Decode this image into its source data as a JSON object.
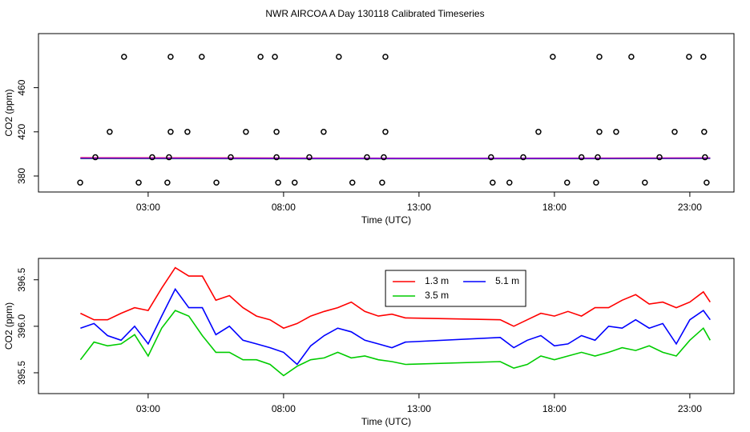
{
  "title": "NWR AIRCOA A  Day 130118  Calibrated Timeseries",
  "chart_data": [
    {
      "type": "scatter",
      "xlabel": "Time (UTC)",
      "ylabel": "CO2 (ppm)",
      "xlim": [
        -1.05,
        24.63
      ],
      "xticks": [
        {
          "value": 3,
          "label": "03:00"
        },
        {
          "value": 8,
          "label": "08:00"
        },
        {
          "value": 13,
          "label": "13:00"
        },
        {
          "value": 18,
          "label": "18:00"
        },
        {
          "value": 23,
          "label": "23:00"
        }
      ],
      "ylim": [
        365.5,
        509
      ],
      "yticks": [
        380,
        420,
        460
      ],
      "points": {
        "color": "#000000",
        "x": [
          2.11,
          3.83,
          4.98,
          7.15,
          7.68,
          10.04,
          11.76,
          17.94,
          19.66,
          20.84,
          22.97,
          23.5,
          1.58,
          3.83,
          4.45,
          6.61,
          7.74,
          9.48,
          11.76,
          17.41,
          19.66,
          20.28,
          22.44,
          23.53,
          1.05,
          3.15,
          3.77,
          6.05,
          7.74,
          8.95,
          11.08,
          11.7,
          15.66,
          16.85,
          19.0,
          19.6,
          21.88,
          23.56,
          0.49,
          2.65,
          3.71,
          5.52,
          7.8,
          8.41,
          10.54,
          11.64,
          15.72,
          16.34,
          18.47,
          19.54,
          21.34,
          23.62
        ],
        "values": [
          488,
          488,
          488,
          488,
          488,
          488,
          488,
          488,
          488,
          488,
          488,
          488,
          420,
          420,
          420,
          420,
          420,
          420,
          420,
          420,
          420,
          420,
          420,
          420,
          397,
          397,
          397,
          397,
          397,
          397,
          397,
          397,
          397,
          397,
          397,
          397,
          397,
          397,
          374,
          374,
          374,
          374,
          374,
          374,
          374,
          374,
          374,
          374,
          374,
          374,
          374,
          374
        ]
      },
      "series": [
        {
          "color": "#ff0000",
          "x": [
            0.5,
            12.5,
            16.0,
            23.75
          ],
          "values": [
            396.5,
            396.1,
            396.1,
            396.3
          ]
        },
        {
          "color": "#00cc00",
          "x": [
            0.5,
            12.5,
            16.0,
            23.75
          ],
          "values": [
            395.8,
            395.6,
            395.6,
            395.9
          ]
        },
        {
          "color": "#0000ff",
          "x": [
            0.5,
            12.5,
            16.0,
            23.75
          ],
          "values": [
            396.1,
            395.8,
            395.9,
            396.1
          ]
        },
        {
          "color": "#9900cc",
          "x": [
            0.5,
            12.5,
            16.0,
            23.75
          ],
          "values": [
            396.3,
            396.0,
            396.0,
            396.2
          ]
        }
      ]
    },
    {
      "type": "line",
      "xlabel": "Time (UTC)",
      "ylabel": "CO2 (ppm)",
      "xlim": [
        -1.05,
        24.63
      ],
      "xticks": [
        {
          "value": 3,
          "label": "03:00"
        },
        {
          "value": 8,
          "label": "08:00"
        },
        {
          "value": 13,
          "label": "13:00"
        },
        {
          "value": 18,
          "label": "18:00"
        },
        {
          "value": 23,
          "label": "23:00"
        }
      ],
      "ylim": [
        395.276,
        396.73
      ],
      "yticks": [
        {
          "value": 395.5,
          "label": "395.5"
        },
        {
          "value": 396,
          "label": "396.0"
        },
        {
          "value": 396.5,
          "label": "396.5"
        }
      ],
      "legend_position": "top-center",
      "x": [
        0.5,
        1.0,
        1.5,
        2.0,
        2.5,
        3.0,
        3.5,
        4.0,
        4.5,
        5.0,
        5.5,
        6.0,
        6.5,
        7.0,
        7.5,
        8.0,
        8.5,
        9.0,
        9.5,
        10.0,
        10.5,
        11.0,
        11.5,
        12.0,
        12.5,
        16.0,
        16.5,
        17.0,
        17.5,
        18.0,
        18.5,
        19.0,
        19.5,
        20.0,
        20.5,
        21.0,
        21.5,
        22.0,
        22.5,
        23.0,
        23.5,
        23.75
      ],
      "series": [
        {
          "name": "1.3 m",
          "color": "#ff0000",
          "values": [
            396.14,
            396.07,
            396.07,
            396.14,
            396.2,
            396.17,
            396.41,
            396.63,
            396.54,
            396.54,
            396.28,
            396.33,
            396.2,
            396.11,
            396.07,
            395.98,
            396.03,
            396.11,
            396.16,
            396.2,
            396.26,
            396.16,
            396.11,
            396.13,
            396.09,
            396.07,
            396.0,
            396.07,
            396.14,
            396.11,
            396.16,
            396.11,
            396.2,
            396.2,
            396.28,
            396.34,
            396.24,
            396.26,
            396.2,
            396.26,
            396.37,
            396.26
          ]
        },
        {
          "name": "3.5 m",
          "color": "#00cc00",
          "values": [
            395.64,
            395.83,
            395.79,
            395.81,
            395.91,
            395.68,
            395.98,
            396.17,
            396.11,
            395.9,
            395.72,
            395.72,
            395.64,
            395.64,
            395.59,
            395.47,
            395.57,
            395.64,
            395.66,
            395.72,
            395.66,
            395.68,
            395.64,
            395.62,
            395.59,
            395.62,
            395.55,
            395.59,
            395.68,
            395.64,
            395.68,
            395.72,
            395.68,
            395.72,
            395.77,
            395.74,
            395.79,
            395.72,
            395.68,
            395.85,
            395.98,
            395.85
          ]
        },
        {
          "name": "5.1 m",
          "color": "#0000ff",
          "values": [
            395.98,
            396.03,
            395.9,
            395.85,
            396.0,
            395.81,
            396.11,
            396.4,
            396.2,
            396.2,
            395.91,
            396.0,
            395.85,
            395.81,
            395.77,
            395.72,
            395.59,
            395.79,
            395.9,
            395.98,
            395.94,
            395.85,
            395.81,
            395.77,
            395.83,
            395.88,
            395.77,
            395.85,
            395.9,
            395.79,
            395.81,
            395.9,
            395.85,
            396.0,
            395.98,
            396.07,
            395.98,
            396.03,
            395.81,
            396.07,
            396.17,
            396.07
          ]
        }
      ]
    }
  ]
}
